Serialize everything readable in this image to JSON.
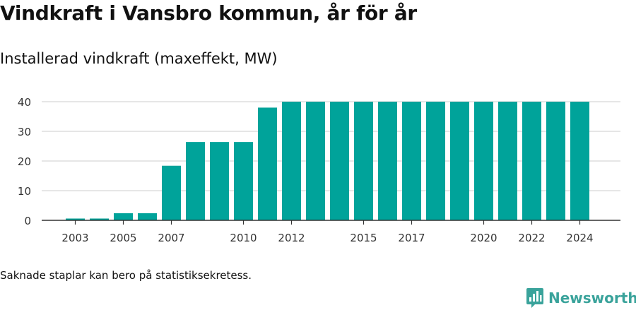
{
  "header": {
    "title": "Vindkraft i Vansbro kommun, år för år",
    "subtitle": "Installerad vindkraft (maxeffekt, MW)"
  },
  "footer": {
    "note": "Saknade staplar kan bero på statistiksekretess."
  },
  "brand": {
    "name": "Newsworthy",
    "logo_icon": "bar-chart-speech-bubble-icon",
    "color": "#3aa39b"
  },
  "colors": {
    "bar": "#00a39a",
    "grid": "#dddddd",
    "axis": "#333333"
  },
  "chart_data": {
    "type": "bar",
    "title": "Installerad vindkraft (maxeffekt, MW)",
    "xlabel": "",
    "ylabel": "",
    "categories": [
      "2003",
      "2004",
      "2005",
      "2006",
      "2007",
      "2008",
      "2009",
      "2010",
      "2011",
      "2012",
      "2013",
      "2014",
      "2015",
      "2016",
      "2017",
      "2018",
      "2019",
      "2020",
      "2021",
      "2022",
      "2023",
      "2024"
    ],
    "values": [
      0.6,
      0.6,
      2.4,
      2.4,
      18.4,
      26.4,
      26.4,
      26.4,
      38.0,
      40.0,
      40.0,
      40.0,
      40.0,
      40.0,
      40.0,
      40.0,
      40.0,
      40.0,
      40.0,
      40.0,
      40.0,
      40.0
    ],
    "x_tick_labels": [
      "2003",
      "2005",
      "2007",
      "2010",
      "2012",
      "2015",
      "2017",
      "2020",
      "2022",
      "2024"
    ],
    "y_ticks": [
      0,
      10,
      20,
      30,
      40
    ],
    "ylim": [
      0,
      40
    ],
    "grid": true,
    "legend": "none"
  }
}
